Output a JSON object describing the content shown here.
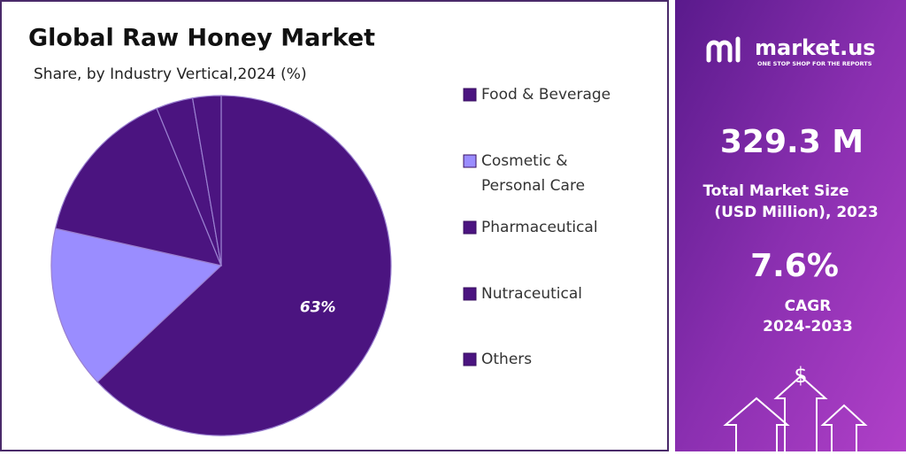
{
  "chart_data": {
    "type": "pie",
    "title": "Global Raw Honey Market",
    "subtitle": "Share, by Industry Vertical,2024 (%)",
    "categories": [
      "Food & Beverage",
      "Cosmetic & Personal Care",
      "Pharmaceutical",
      "Nutraceutical",
      "Others"
    ],
    "values": [
      63,
      15.5,
      15.3,
      3.5,
      2.7
    ],
    "value_labels": [
      "63%",
      null,
      null,
      null,
      null
    ],
    "colors": [
      "#4b1480",
      "#9a8dff",
      "#4b1480",
      "#4b1480",
      "#4b1480"
    ],
    "legend": "right"
  },
  "panel": {
    "brand": "market.us",
    "tagline": "ONE STOP SHOP FOR THE REPORTS",
    "market_size": "329.3 M",
    "market_size_label_1": "Total Market Size",
    "market_size_label_2": "(USD Million), 2023",
    "cagr": "7.6%",
    "cagr_label_1": "CAGR",
    "cagr_label_2": "2024-2033",
    "currency_icon": "$"
  }
}
